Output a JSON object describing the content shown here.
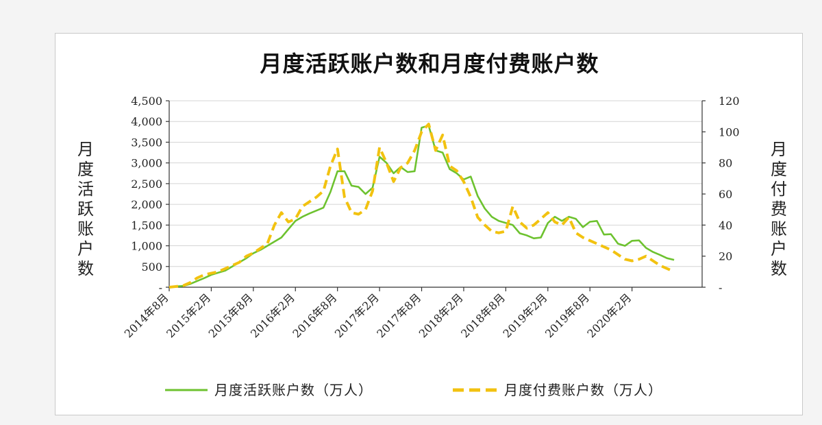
{
  "chart_data": {
    "type": "line",
    "title": "月度活跃账户数和月度付费账户数",
    "y_left": {
      "label": "月度活跃账户数",
      "range": [
        0,
        4500
      ],
      "ticks": [
        0,
        500,
        1000,
        1500,
        2000,
        2500,
        3000,
        3500,
        4000,
        4500
      ],
      "tick_labels": [
        "-",
        "500",
        "1,000",
        "1,500",
        "2,000",
        "2,500",
        "3,000",
        "3,500",
        "4,000",
        "4,500"
      ]
    },
    "y_right": {
      "label": "月度付费账户数",
      "range": [
        0,
        120
      ],
      "ticks": [
        0,
        20,
        40,
        60,
        80,
        100,
        120
      ],
      "tick_labels": [
        "-",
        "20",
        "40",
        "60",
        "80",
        "100",
        "120"
      ]
    },
    "x": {
      "start": "2014-08",
      "end": "2020-12",
      "tick_labels": [
        "2014年8月",
        "2015年2月",
        "2015年8月",
        "2016年2月",
        "2016年8月",
        "2017年2月",
        "2017年8月",
        "2018年2月",
        "2018年8月",
        "2019年2月",
        "2019年8月",
        "2020年2月"
      ],
      "tick_months": [
        "2014-08",
        "2015-02",
        "2015-08",
        "2016-02",
        "2016-08",
        "2017-02",
        "2017-08",
        "2018-02",
        "2018-08",
        "2019-02",
        "2019-08",
        "2020-02"
      ]
    },
    "grid": true,
    "legend_position": "bottom",
    "series": [
      {
        "name": "月度活跃账户数（万人）",
        "axis": "left",
        "color": "#6dc22f",
        "style": "solid",
        "months": [
          "2014-08",
          "2014-09",
          "2014-10",
          "2014-11",
          "2014-12",
          "2015-01",
          "2015-02",
          "2015-03",
          "2015-04",
          "2015-05",
          "2015-06",
          "2015-07",
          "2015-08",
          "2015-09",
          "2015-10",
          "2015-11",
          "2015-12",
          "2016-01",
          "2016-02",
          "2016-03",
          "2016-04",
          "2016-05",
          "2016-06",
          "2016-07",
          "2016-08",
          "2016-09",
          "2016-10",
          "2016-11",
          "2016-12",
          "2017-01",
          "2017-02",
          "2017-03",
          "2017-04",
          "2017-05",
          "2017-06",
          "2017-07",
          "2017-08",
          "2017-09",
          "2017-10",
          "2017-11",
          "2017-12",
          "2018-01",
          "2018-02",
          "2018-03",
          "2018-04",
          "2018-05",
          "2018-06",
          "2018-07",
          "2018-08",
          "2018-09",
          "2018-10",
          "2018-11",
          "2018-12",
          "2019-01",
          "2019-02",
          "2019-03",
          "2019-04",
          "2019-05",
          "2019-06",
          "2019-07",
          "2019-08",
          "2019-09",
          "2019-10",
          "2019-11",
          "2019-12",
          "2020-01",
          "2020-02",
          "2020-03",
          "2020-04",
          "2020-05",
          "2020-06",
          "2020-07",
          "2020-08"
        ],
        "values": [
          0,
          20,
          30,
          80,
          150,
          220,
          300,
          350,
          400,
          500,
          600,
          700,
          820,
          900,
          1000,
          1100,
          1200,
          1400,
          1600,
          1700,
          1780,
          1850,
          1920,
          2300,
          2800,
          2800,
          2450,
          2420,
          2250,
          2400,
          3150,
          3000,
          2750,
          2900,
          2780,
          2800,
          3850,
          3900,
          3300,
          3250,
          2850,
          2750,
          2600,
          2670,
          2200,
          1900,
          1700,
          1600,
          1550,
          1500,
          1300,
          1250,
          1180,
          1200,
          1550,
          1700,
          1600,
          1700,
          1650,
          1450,
          1580,
          1600,
          1270,
          1280,
          1050,
          1000,
          1120,
          1130,
          950,
          850,
          780,
          700,
          660
        ]
      },
      {
        "name": "月度付费账户数（万人）",
        "axis": "right",
        "color": "#f2c210",
        "style": "dashed",
        "months": [
          "2014-08",
          "2014-09",
          "2014-10",
          "2014-11",
          "2014-12",
          "2015-01",
          "2015-02",
          "2015-03",
          "2015-04",
          "2015-05",
          "2015-06",
          "2015-07",
          "2015-08",
          "2015-09",
          "2015-10",
          "2015-11",
          "2015-12",
          "2016-01",
          "2016-02",
          "2016-03",
          "2016-04",
          "2016-05",
          "2016-06",
          "2016-07",
          "2016-08",
          "2016-09",
          "2016-10",
          "2016-11",
          "2016-12",
          "2017-01",
          "2017-02",
          "2017-03",
          "2017-04",
          "2017-05",
          "2017-06",
          "2017-07",
          "2017-08",
          "2017-09",
          "2017-10",
          "2017-11",
          "2017-12",
          "2018-01",
          "2018-02",
          "2018-03",
          "2018-04",
          "2018-05",
          "2018-06",
          "2018-07",
          "2018-08",
          "2018-09",
          "2018-10",
          "2018-11",
          "2018-12",
          "2019-01",
          "2019-02",
          "2019-03",
          "2019-04",
          "2019-05",
          "2019-06",
          "2019-07",
          "2019-08",
          "2019-09",
          "2019-10",
          "2019-11",
          "2019-12",
          "2020-01",
          "2020-02",
          "2020-03",
          "2020-04",
          "2020-05",
          "2020-06",
          "2020-07",
          "2020-08"
        ],
        "values": [
          0,
          0.5,
          1,
          3,
          6,
          8,
          9,
          10,
          12,
          14,
          16,
          20,
          22,
          25,
          28,
          40,
          48,
          42,
          44,
          52,
          55,
          58,
          62,
          78,
          89,
          58,
          48,
          47,
          50,
          62,
          90,
          80,
          68,
          77,
          80,
          88,
          100,
          105,
          88,
          98,
          78,
          75,
          68,
          58,
          45,
          40,
          36,
          35,
          36,
          52,
          42,
          38,
          40,
          44,
          48,
          42,
          40,
          45,
          35,
          32,
          30,
          28,
          26,
          24,
          21,
          18,
          17,
          18,
          20,
          17,
          14,
          12,
          10
        ]
      }
    ]
  }
}
